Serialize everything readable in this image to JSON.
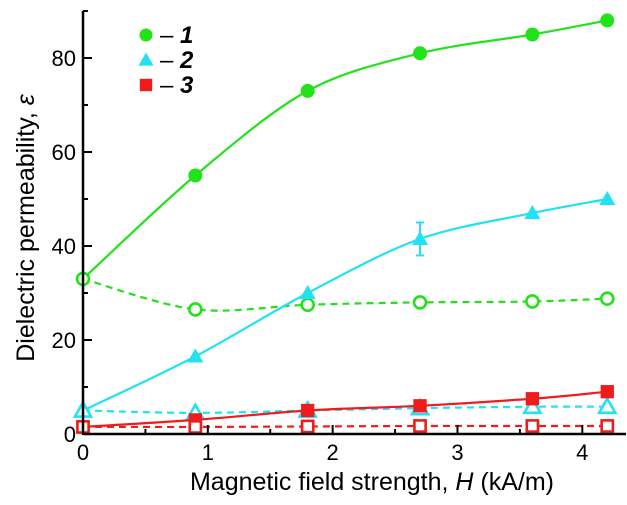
{
  "chart_data": {
    "type": "line",
    "xlabel": "Magnetic field strength, H (kA/m)",
    "xlabel_parts": {
      "pre": "Magnetic field strength, ",
      "var": "H",
      "post": " (kA/m)"
    },
    "ylabel": "Dielectric permeability, ε",
    "ylabel_parts": {
      "pre": "Dielectric permeability, ",
      "var": "ε"
    },
    "xlim": [
      0,
      4.35
    ],
    "ylim": [
      0,
      90
    ],
    "x_ticks": [
      0,
      1,
      2,
      3,
      4
    ],
    "y_ticks": [
      0,
      20,
      40,
      60,
      80
    ],
    "grid": false,
    "legend_position": "top-left",
    "legend": [
      {
        "marker": "circle",
        "color": "#22e21a",
        "text": "– ",
        "label": "1"
      },
      {
        "marker": "triangle",
        "color": "#22e1f2",
        "text": "– ",
        "label": "2"
      },
      {
        "marker": "square",
        "color": "#ee1c1c",
        "text": "– ",
        "label": "3"
      }
    ],
    "series": [
      {
        "name": "1",
        "color": "#22e21a",
        "marker": "circle",
        "filled": true,
        "dashed": false,
        "x": [
          0,
          0.9,
          1.8,
          2.7,
          3.6,
          4.2
        ],
        "y": [
          33,
          55,
          73,
          81,
          85,
          88
        ]
      },
      {
        "name": "1",
        "color": "#22e21a",
        "marker": "circle",
        "filled": false,
        "dashed": true,
        "x": [
          0,
          0.9,
          1.8,
          2.7,
          3.6,
          4.2
        ],
        "y": [
          33,
          26.5,
          27.5,
          28,
          28.2,
          28.8
        ]
      },
      {
        "name": "2",
        "color": "#22e1f2",
        "marker": "triangle",
        "filled": true,
        "dashed": false,
        "x": [
          0,
          0.9,
          1.8,
          2.7,
          3.6,
          4.2
        ],
        "y": [
          5,
          16.5,
          30,
          41.5,
          47,
          50
        ],
        "errors": [
          0,
          0,
          0,
          3.5,
          0,
          0
        ]
      },
      {
        "name": "2",
        "color": "#22e1f2",
        "marker": "triangle",
        "filled": false,
        "dashed": true,
        "x": [
          0,
          0.9,
          1.8,
          2.7,
          3.6,
          4.2
        ],
        "y": [
          5,
          4.5,
          5,
          5.5,
          5.8,
          5.8
        ]
      },
      {
        "name": "3",
        "color": "#ee1c1c",
        "marker": "square",
        "filled": true,
        "dashed": false,
        "x": [
          0,
          0.9,
          1.8,
          2.7,
          3.6,
          4.2
        ],
        "y": [
          1.5,
          3,
          5,
          6,
          7.5,
          9
        ]
      },
      {
        "name": "3",
        "color": "#ee1c1c",
        "marker": "square",
        "filled": false,
        "dashed": true,
        "x": [
          0,
          0.9,
          1.8,
          2.7,
          3.6,
          4.2
        ],
        "y": [
          1.5,
          1.5,
          1.6,
          1.7,
          1.7,
          1.7
        ]
      }
    ]
  }
}
